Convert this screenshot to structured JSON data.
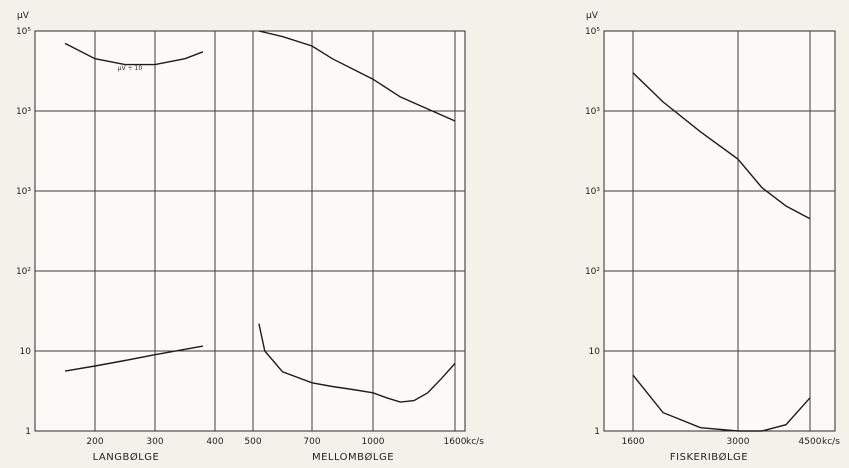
{
  "chart_data": [
    {
      "type": "line",
      "y_unit": "µV",
      "y_scale": "log",
      "y_ticks": [
        "1",
        "10",
        "10²",
        "10³",
        "10³",
        "10⁵"
      ],
      "x_unit": "kc/s",
      "panels": [
        {
          "label": "LANGBØLGE",
          "x_ticks": [
            "200",
            "300",
            "400"
          ],
          "curves": [
            {
              "annotation": "µV ÷ 10",
              "x": [
                150,
                200,
                250,
                300,
                350,
                380
              ],
              "y": [
                70000,
                45000,
                38000,
                38000,
                45000,
                55000
              ]
            },
            {
              "x": [
                150,
                200,
                250,
                300,
                350,
                380
              ],
              "y": [
                5.6,
                6.5,
                7.6,
                9.0,
                10.5,
                11.5
              ]
            }
          ]
        },
        {
          "label": "MELLOMBØLGE",
          "x_ticks": [
            "500",
            "700",
            "1000",
            "1600"
          ],
          "curves": [
            {
              "x": [
                520,
                600,
                700,
                800,
                1000,
                1200,
                1600
              ],
              "y": [
                100000,
                85000,
                65000,
                45000,
                25000,
                15000,
                7500
              ]
            },
            {
              "x": [
                520,
                540,
                600,
                700,
                800,
                900,
                1000,
                1100,
                1200,
                1300,
                1400,
                1500,
                1600
              ],
              "y": [
                22,
                10,
                5.5,
                4.0,
                3.6,
                3.3,
                3.0,
                2.6,
                2.3,
                2.4,
                3.0,
                4.5,
                7.0
              ]
            }
          ]
        },
        {
          "label": "FISKERIBØLGE",
          "x_ticks": [
            "1600",
            "3000",
            "4500"
          ],
          "curves": [
            {
              "x": [
                1600,
                2000,
                2500,
                3000,
                3500,
                4000,
                4500
              ],
              "y": [
                30000,
                13000,
                5500,
                2500,
                1100,
                650,
                450
              ]
            },
            {
              "x": [
                1600,
                2000,
                2500,
                3000,
                3500,
                4000,
                4500
              ],
              "y": [
                5.0,
                1.7,
                1.1,
                1.0,
                1.0,
                1.2,
                2.6
              ]
            }
          ]
        }
      ]
    }
  ]
}
